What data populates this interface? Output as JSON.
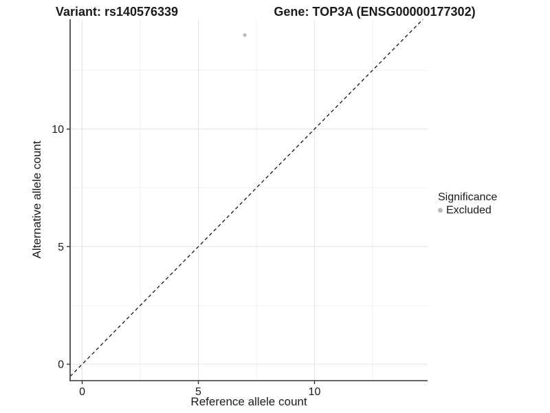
{
  "figure": {
    "title_left": "Variant: rs140576339",
    "title_right": "Gene: TOP3A (ENSG00000177302)"
  },
  "chart_data": {
    "type": "scatter",
    "xlabel": "Reference allele count",
    "ylabel": "Alternative allele count",
    "xlim": [
      -0.52,
      14.87
    ],
    "ylim": [
      -0.7,
      14.67
    ],
    "x_breaks": [
      0,
      5,
      10
    ],
    "y_breaks": [
      0,
      5,
      10
    ],
    "x_minor_breaks": [
      2.5,
      7.5,
      12.5
    ],
    "y_minor_breaks": [
      2.5,
      7.5,
      12.5
    ],
    "grid": true,
    "points": [
      {
        "x": 7,
        "y": 14,
        "series": "Excluded"
      }
    ],
    "reference_line": {
      "type": "identity",
      "slope": 1,
      "intercept": 0,
      "style": "dashed",
      "color": "#000000"
    },
    "legend": {
      "title": "Significance",
      "position": "right",
      "items": [
        {
          "label": "Excluded",
          "color": "#b8b8b8"
        }
      ]
    },
    "colors": {
      "point": "#b8b8b8",
      "grid_major": "#e3e3e3",
      "grid_minor": "#f0f0f0",
      "axis_line": "#333333",
      "text": "#1a1a1a"
    }
  }
}
